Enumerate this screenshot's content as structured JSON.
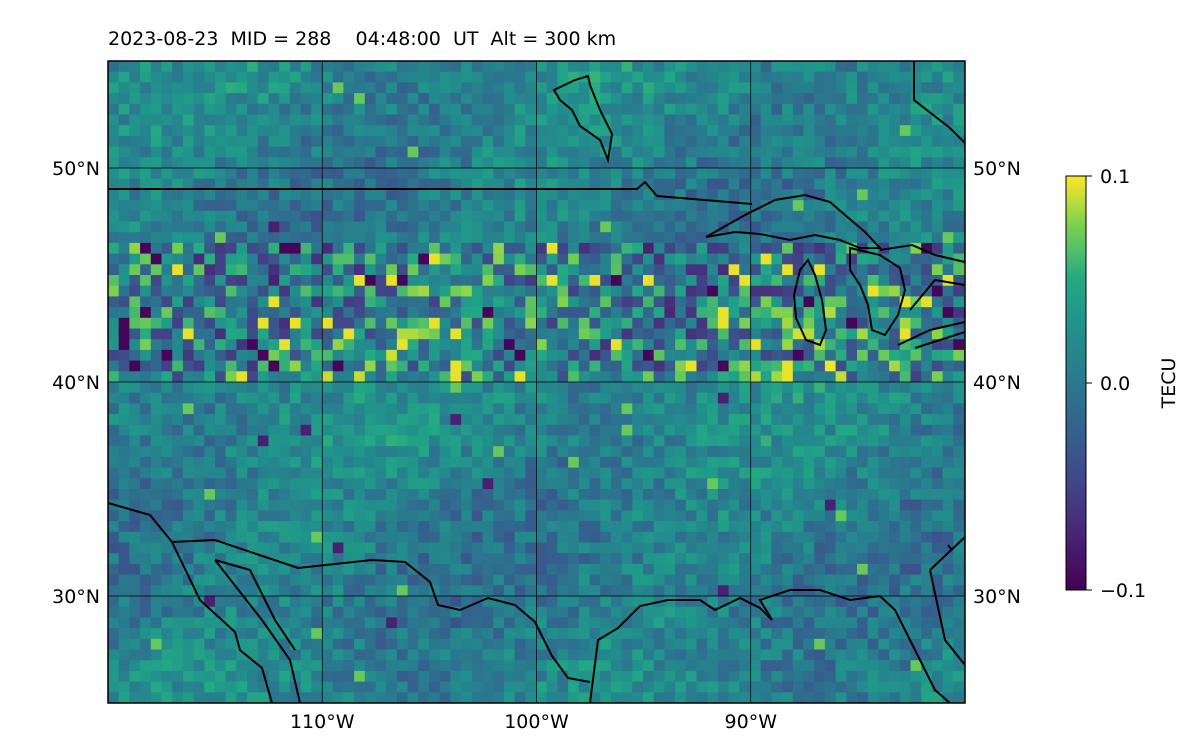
{
  "title": "2023-08-23  MID = 288    04:48:00  UT  Alt = 300 km",
  "chart_data": {
    "type": "heatmap",
    "map_extent": {
      "lon": [
        -120,
        -80
      ],
      "lat": [
        25,
        55
      ]
    },
    "grid_lines": {
      "lon": [
        -110,
        -100,
        -90
      ],
      "lat": [
        30,
        40,
        50
      ]
    },
    "lat_labels": [
      "30°N",
      "40°N",
      "50°N"
    ],
    "lon_labels": [
      "110°W",
      "100°W",
      "90°W"
    ],
    "colorbar": {
      "label": "TECU",
      "range": [
        -0.1,
        0.1
      ],
      "ticks": [
        "−0.1",
        "0.0",
        "0.1"
      ],
      "colormap": "viridis"
    },
    "grid": true
  },
  "colors": {
    "bg_field": "#2a8b8c",
    "coastline": "#000000"
  }
}
